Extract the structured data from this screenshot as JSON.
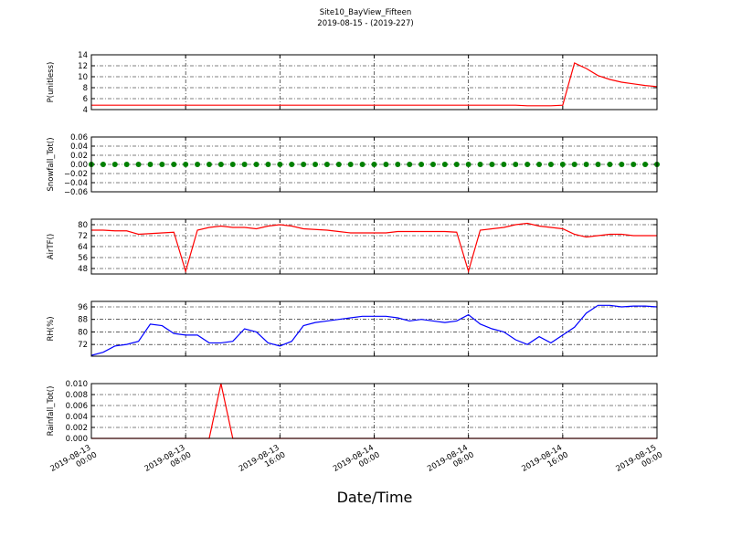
{
  "chart_data": [
    {
      "type": "line",
      "title": "Site10_BayView_Fifteen",
      "subtitle": "2019-08-15 - (2019-227)",
      "ylabel": "P(unitless)",
      "color": "#ff0000",
      "grid": true,
      "x": [
        "2019-08-13 00:00",
        "2019-08-13 01:00",
        "2019-08-13 02:00",
        "2019-08-13 03:00",
        "2019-08-13 04:00",
        "2019-08-13 05:00",
        "2019-08-13 06:00",
        "2019-08-13 07:00",
        "2019-08-13 08:00",
        "2019-08-13 09:00",
        "2019-08-13 10:00",
        "2019-08-13 11:00",
        "2019-08-13 12:00",
        "2019-08-13 13:00",
        "2019-08-13 14:00",
        "2019-08-13 15:00",
        "2019-08-13 16:00",
        "2019-08-13 17:00",
        "2019-08-13 18:00",
        "2019-08-13 19:00",
        "2019-08-13 20:00",
        "2019-08-13 21:00",
        "2019-08-13 22:00",
        "2019-08-13 23:00",
        "2019-08-14 00:00",
        "2019-08-14 01:00",
        "2019-08-14 02:00",
        "2019-08-14 03:00",
        "2019-08-14 04:00",
        "2019-08-14 05:00",
        "2019-08-14 06:00",
        "2019-08-14 07:00",
        "2019-08-14 08:00",
        "2019-08-14 09:00",
        "2019-08-14 10:00",
        "2019-08-14 11:00",
        "2019-08-14 12:00",
        "2019-08-14 13:00",
        "2019-08-14 14:00",
        "2019-08-14 15:00",
        "2019-08-14 16:00",
        "2019-08-14 17:00",
        "2019-08-14 18:00",
        "2019-08-14 19:00",
        "2019-08-14 20:00",
        "2019-08-14 21:00",
        "2019-08-14 22:00",
        "2019-08-14 23:00",
        "2019-08-15 00:00"
      ],
      "values": [
        4.8,
        4.8,
        4.8,
        4.8,
        4.8,
        4.8,
        4.8,
        4.8,
        4.8,
        4.8,
        4.8,
        4.8,
        4.8,
        4.8,
        4.8,
        4.8,
        4.8,
        4.8,
        4.8,
        4.8,
        4.8,
        4.8,
        4.8,
        4.8,
        4.8,
        4.8,
        4.8,
        4.8,
        4.8,
        4.8,
        4.8,
        4.8,
        4.8,
        4.8,
        4.8,
        4.8,
        4.8,
        4.7,
        4.7,
        4.7,
        4.8,
        12.5,
        11.5,
        10.2,
        9.5,
        9,
        8.7,
        8.4,
        8.2
      ],
      "ylim": [
        4,
        14
      ],
      "yticks": [
        4,
        6,
        8,
        10,
        12,
        14
      ]
    },
    {
      "type": "scatter",
      "ylabel": "Snowfall_Tot()",
      "color": "#008000",
      "grid": true,
      "x": [
        "2019-08-13 00:00",
        "2019-08-13 01:00",
        "2019-08-13 02:00",
        "2019-08-13 03:00",
        "2019-08-13 04:00",
        "2019-08-13 05:00",
        "2019-08-13 06:00",
        "2019-08-13 07:00",
        "2019-08-13 08:00",
        "2019-08-13 09:00",
        "2019-08-13 10:00",
        "2019-08-13 11:00",
        "2019-08-13 12:00",
        "2019-08-13 13:00",
        "2019-08-13 14:00",
        "2019-08-13 15:00",
        "2019-08-13 16:00",
        "2019-08-13 17:00",
        "2019-08-13 18:00",
        "2019-08-13 19:00",
        "2019-08-13 20:00",
        "2019-08-13 21:00",
        "2019-08-13 22:00",
        "2019-08-13 23:00",
        "2019-08-14 00:00",
        "2019-08-14 01:00",
        "2019-08-14 02:00",
        "2019-08-14 03:00",
        "2019-08-14 04:00",
        "2019-08-14 05:00",
        "2019-08-14 06:00",
        "2019-08-14 07:00",
        "2019-08-14 08:00",
        "2019-08-14 09:00",
        "2019-08-14 10:00",
        "2019-08-14 11:00",
        "2019-08-14 12:00",
        "2019-08-14 13:00",
        "2019-08-14 14:00",
        "2019-08-14 15:00",
        "2019-08-14 16:00",
        "2019-08-14 17:00",
        "2019-08-14 18:00",
        "2019-08-14 19:00",
        "2019-08-14 20:00",
        "2019-08-14 21:00",
        "2019-08-14 22:00",
        "2019-08-14 23:00",
        "2019-08-15 00:00"
      ],
      "values": [
        0,
        0,
        0,
        0,
        0,
        0,
        0,
        0,
        0,
        0,
        0,
        0,
        0,
        0,
        0,
        0,
        0,
        0,
        0,
        0,
        0,
        0,
        0,
        0,
        0,
        0,
        0,
        0,
        0,
        0,
        0,
        0,
        0,
        0,
        0,
        0,
        0,
        0,
        0,
        0,
        0,
        0,
        0,
        0,
        0,
        0,
        0,
        0,
        0
      ],
      "ylim": [
        -0.06,
        0.06
      ],
      "yticks": [
        {
          "value": -0.06,
          "label": "−0.06"
        },
        {
          "value": -0.04,
          "label": "−0.04"
        },
        {
          "value": -0.02,
          "label": "−0.02"
        },
        {
          "value": 0,
          "label": "0.00"
        },
        0.02,
        0.04,
        0.06
      ]
    },
    {
      "type": "line",
      "ylabel": "AirTF()",
      "color": "#ff0000",
      "grid": true,
      "x": [
        "2019-08-13 00:00",
        "2019-08-13 01:00",
        "2019-08-13 02:00",
        "2019-08-13 03:00",
        "2019-08-13 04:00",
        "2019-08-13 05:00",
        "2019-08-13 06:00",
        "2019-08-13 07:00",
        "2019-08-13 08:00",
        "2019-08-13 09:00",
        "2019-08-13 10:00",
        "2019-08-13 11:00",
        "2019-08-13 12:00",
        "2019-08-13 13:00",
        "2019-08-13 14:00",
        "2019-08-13 15:00",
        "2019-08-13 16:00",
        "2019-08-13 17:00",
        "2019-08-13 18:00",
        "2019-08-13 19:00",
        "2019-08-13 20:00",
        "2019-08-13 21:00",
        "2019-08-13 22:00",
        "2019-08-13 23:00",
        "2019-08-14 00:00",
        "2019-08-14 01:00",
        "2019-08-14 02:00",
        "2019-08-14 03:00",
        "2019-08-14 04:00",
        "2019-08-14 05:00",
        "2019-08-14 06:00",
        "2019-08-14 07:00",
        "2019-08-14 08:00",
        "2019-08-14 09:00",
        "2019-08-14 10:00",
        "2019-08-14 11:00",
        "2019-08-14 12:00",
        "2019-08-14 13:00",
        "2019-08-14 14:00",
        "2019-08-14 15:00",
        "2019-08-14 16:00",
        "2019-08-14 17:00",
        "2019-08-14 18:00",
        "2019-08-14 19:00",
        "2019-08-14 20:00",
        "2019-08-14 21:00",
        "2019-08-14 22:00",
        "2019-08-14 23:00",
        "2019-08-15 00:00"
      ],
      "values": [
        76,
        76,
        75.5,
        75.5,
        73,
        73.5,
        74,
        74.5,
        46,
        76,
        78,
        79,
        78,
        78,
        77,
        79,
        80,
        79,
        77,
        76.5,
        76,
        75,
        74,
        74,
        74,
        74,
        75,
        75,
        75,
        75,
        75,
        74.5,
        46,
        76,
        77,
        78,
        80,
        81,
        79,
        78,
        77,
        73,
        71,
        72,
        73,
        73,
        72,
        72,
        72
      ],
      "ylim": [
        44,
        84
      ],
      "yticks": [
        48,
        56,
        64,
        72,
        80
      ]
    },
    {
      "type": "line",
      "ylabel": "RH(%)",
      "color": "#0000ff",
      "grid": true,
      "x": [
        "2019-08-13 00:00",
        "2019-08-13 01:00",
        "2019-08-13 02:00",
        "2019-08-13 03:00",
        "2019-08-13 04:00",
        "2019-08-13 05:00",
        "2019-08-13 06:00",
        "2019-08-13 07:00",
        "2019-08-13 08:00",
        "2019-08-13 09:00",
        "2019-08-13 10:00",
        "2019-08-13 11:00",
        "2019-08-13 12:00",
        "2019-08-13 13:00",
        "2019-08-13 14:00",
        "2019-08-13 15:00",
        "2019-08-13 16:00",
        "2019-08-13 17:00",
        "2019-08-13 18:00",
        "2019-08-13 19:00",
        "2019-08-13 20:00",
        "2019-08-13 21:00",
        "2019-08-13 22:00",
        "2019-08-13 23:00",
        "2019-08-14 00:00",
        "2019-08-14 01:00",
        "2019-08-14 02:00",
        "2019-08-14 03:00",
        "2019-08-14 04:00",
        "2019-08-14 05:00",
        "2019-08-14 06:00",
        "2019-08-14 07:00",
        "2019-08-14 08:00",
        "2019-08-14 09:00",
        "2019-08-14 10:00",
        "2019-08-14 11:00",
        "2019-08-14 12:00",
        "2019-08-14 13:00",
        "2019-08-14 14:00",
        "2019-08-14 15:00",
        "2019-08-14 16:00",
        "2019-08-14 17:00",
        "2019-08-14 18:00",
        "2019-08-14 19:00",
        "2019-08-14 20:00",
        "2019-08-14 21:00",
        "2019-08-14 22:00",
        "2019-08-14 23:00",
        "2019-08-15 00:00"
      ],
      "values": [
        65,
        67,
        71,
        72,
        74,
        85,
        84,
        79,
        78,
        78,
        73,
        73,
        74,
        82,
        80,
        73,
        71,
        74,
        84,
        86,
        87,
        88,
        89,
        90,
        90,
        90,
        89,
        87,
        88,
        87,
        86,
        87,
        91,
        85,
        82,
        80,
        75,
        72,
        77,
        73,
        78,
        83,
        92,
        97,
        97,
        96,
        96.5,
        96.5,
        96
      ],
      "ylim": [
        64.5,
        99.5
      ],
      "yticks": [
        72,
        80,
        88,
        96
      ]
    },
    {
      "type": "line",
      "ylabel": "Rainfall_Tot()",
      "xlabel": "Date/Time",
      "color": "#ff0000",
      "grid": true,
      "x": [
        "2019-08-13 00:00",
        "2019-08-13 01:00",
        "2019-08-13 02:00",
        "2019-08-13 03:00",
        "2019-08-13 04:00",
        "2019-08-13 05:00",
        "2019-08-13 06:00",
        "2019-08-13 07:00",
        "2019-08-13 08:00",
        "2019-08-13 09:00",
        "2019-08-13 10:00",
        "2019-08-13 11:00",
        "2019-08-13 12:00",
        "2019-08-13 13:00",
        "2019-08-13 14:00",
        "2019-08-13 15:00",
        "2019-08-13 16:00",
        "2019-08-13 17:00",
        "2019-08-13 18:00",
        "2019-08-13 19:00",
        "2019-08-13 20:00",
        "2019-08-13 21:00",
        "2019-08-13 22:00",
        "2019-08-13 23:00",
        "2019-08-14 00:00",
        "2019-08-14 01:00",
        "2019-08-14 02:00",
        "2019-08-14 03:00",
        "2019-08-14 04:00",
        "2019-08-14 05:00",
        "2019-08-14 06:00",
        "2019-08-14 07:00",
        "2019-08-14 08:00",
        "2019-08-14 09:00",
        "2019-08-14 10:00",
        "2019-08-14 11:00",
        "2019-08-14 12:00",
        "2019-08-14 13:00",
        "2019-08-14 14:00",
        "2019-08-14 15:00",
        "2019-08-14 16:00",
        "2019-08-14 17:00",
        "2019-08-14 18:00",
        "2019-08-14 19:00",
        "2019-08-14 20:00",
        "2019-08-14 21:00",
        "2019-08-14 22:00",
        "2019-08-14 23:00",
        "2019-08-15 00:00"
      ],
      "values": [
        0,
        0,
        0,
        0,
        0,
        0,
        0,
        0,
        0,
        0,
        0,
        0.01,
        0,
        0,
        0,
        0,
        0,
        0,
        0,
        0,
        0,
        0,
        0,
        0,
        0,
        0,
        0,
        0,
        0,
        0,
        0,
        0,
        0,
        0,
        0,
        0,
        0,
        0,
        0,
        0,
        0,
        0,
        0,
        0,
        0,
        0,
        0,
        0,
        0
      ],
      "ylim": [
        0,
        0.01
      ],
      "yticks": [
        {
          "value": 0,
          "label": "0.000"
        },
        {
          "value": 0.002,
          "label": "0.002"
        },
        {
          "value": 0.004,
          "label": "0.004"
        },
        {
          "value": 0.006,
          "label": "0.006"
        },
        {
          "value": 0.008,
          "label": "0.008"
        },
        {
          "value": 0.01,
          "label": "0.010"
        }
      ],
      "xlim": [
        "2019-08-13 00:00",
        "2019-08-15 00:00"
      ],
      "xticks": [
        "2019-08-13 00:00",
        "2019-08-13 08:00",
        "2019-08-13 16:00",
        "2019-08-14 00:00",
        "2019-08-14 08:00",
        "2019-08-14 16:00",
        "2019-08-15 00:00"
      ]
    }
  ]
}
